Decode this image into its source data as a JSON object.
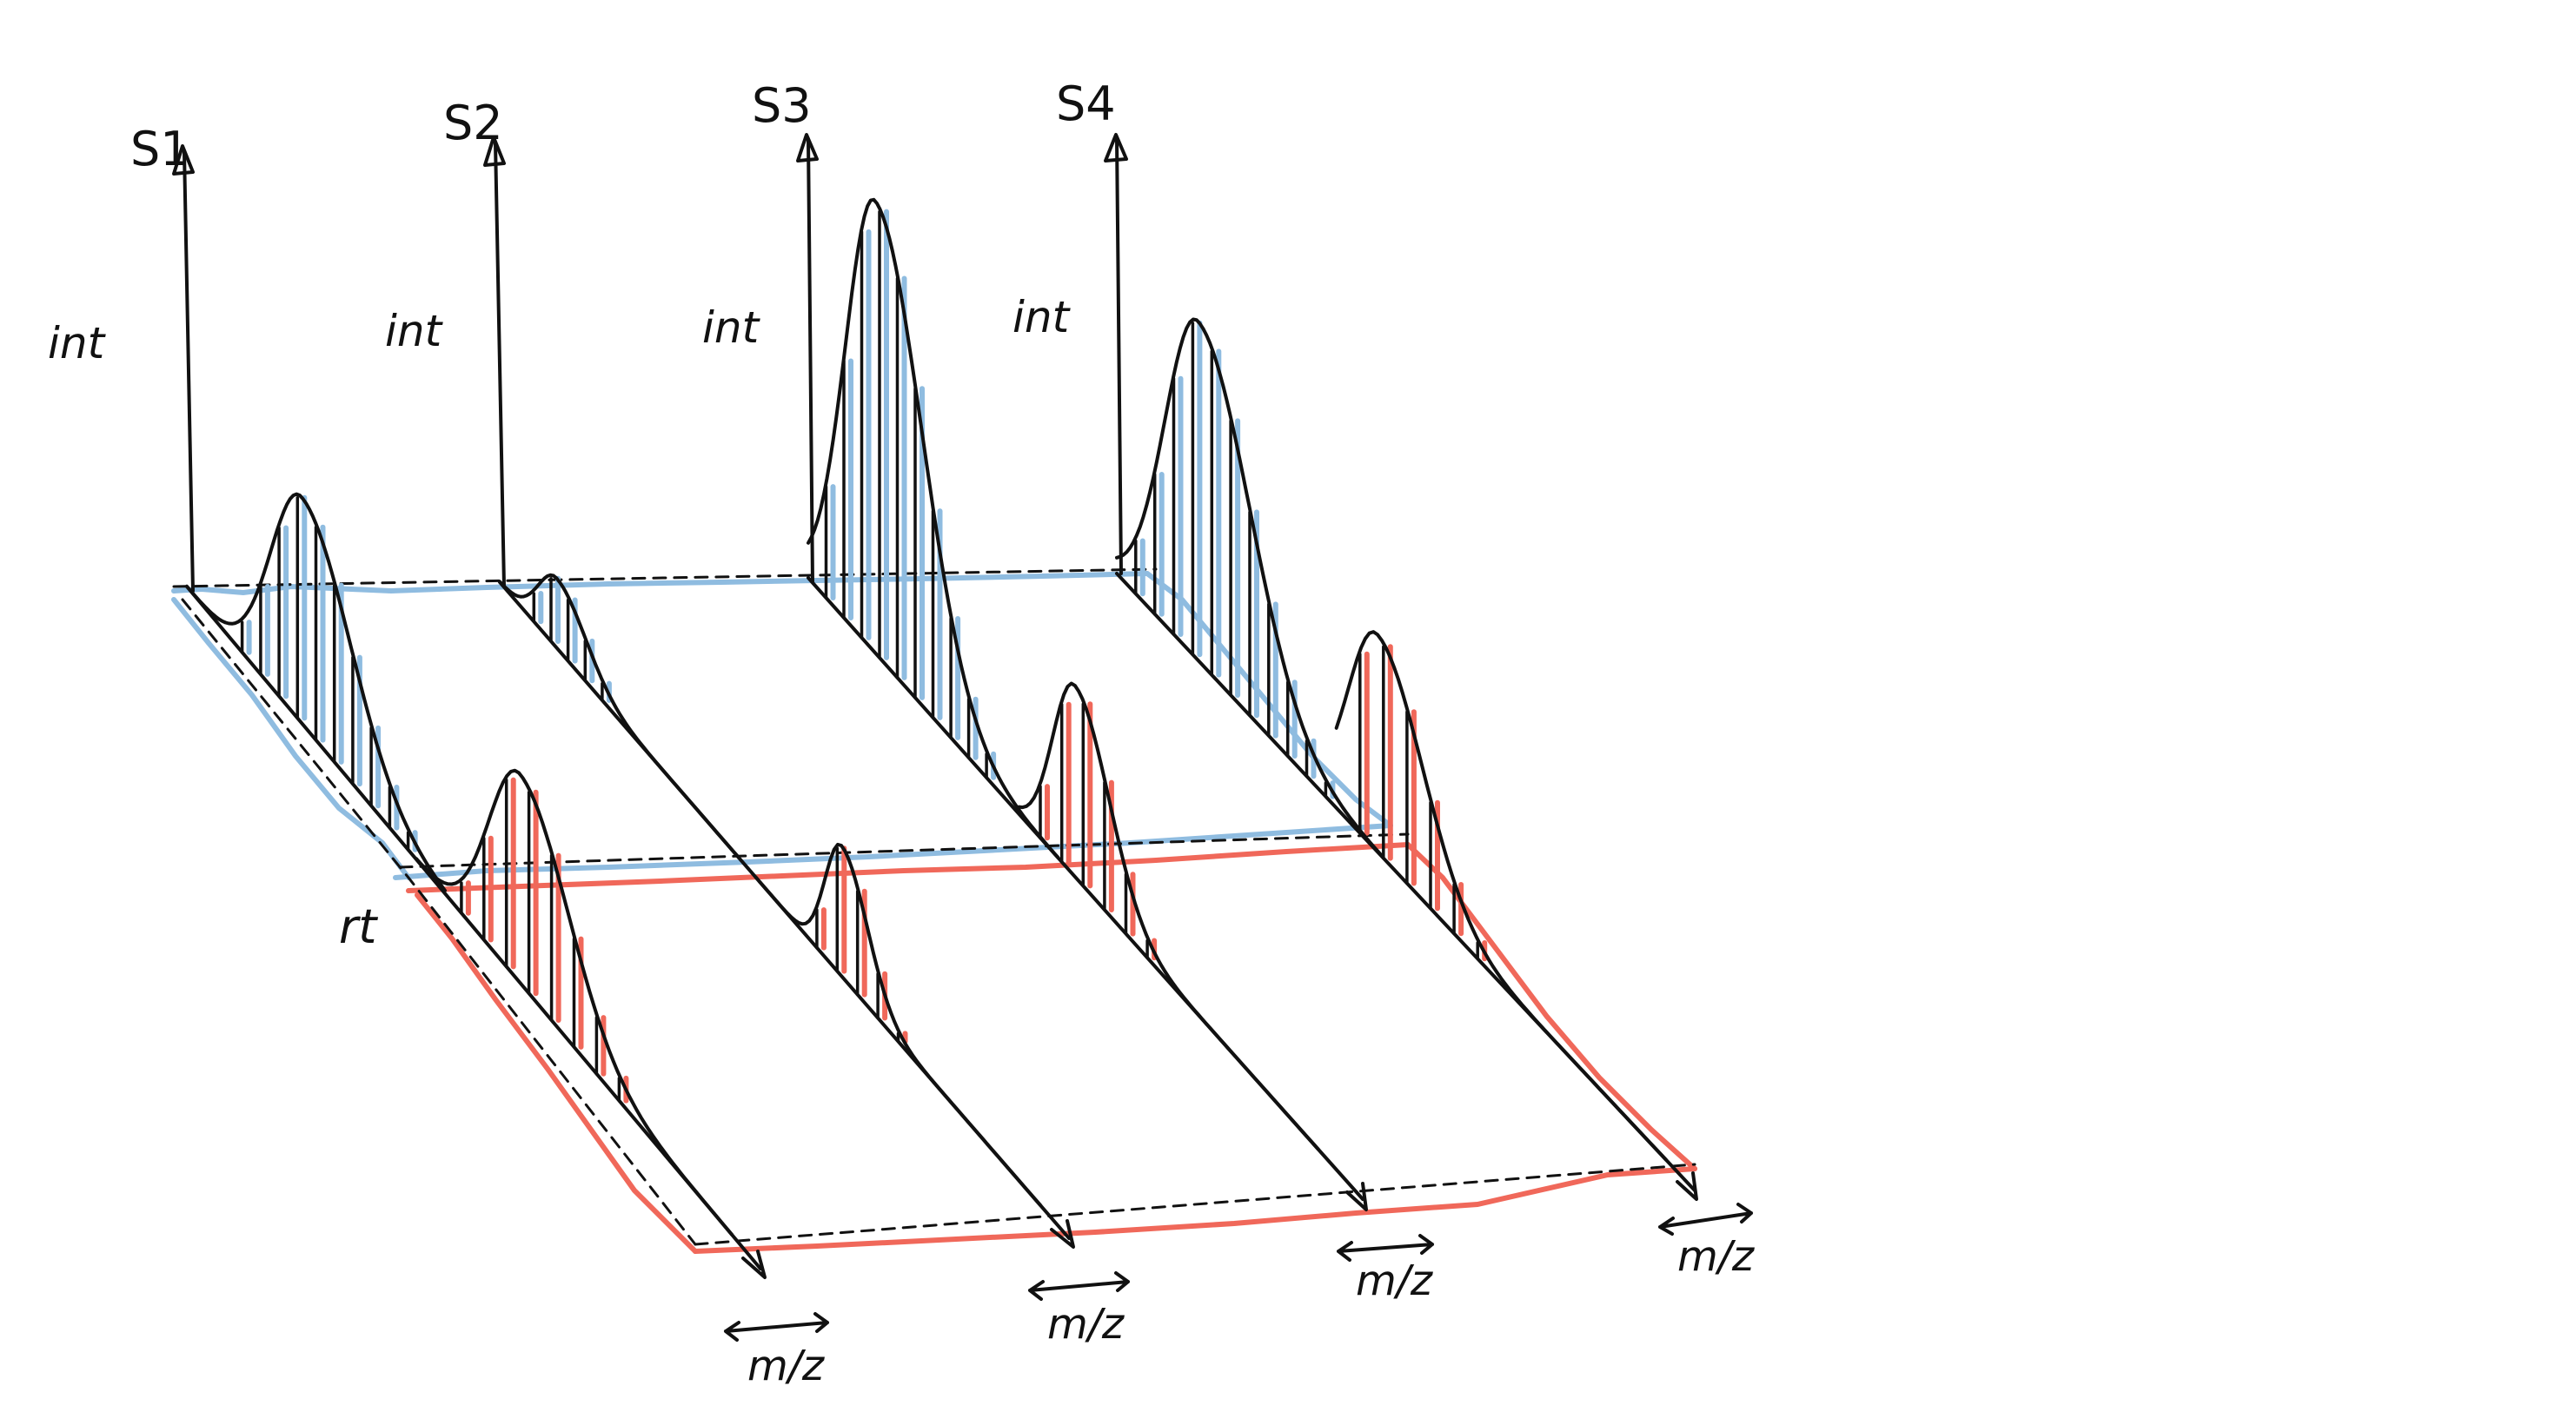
{
  "samples": [
    {
      "label": "S1",
      "axis_label": "int"
    },
    {
      "label": "S2",
      "axis_label": "int"
    },
    {
      "label": "S3",
      "axis_label": "int"
    },
    {
      "label": "S4",
      "axis_label": "int"
    }
  ],
  "rt_label": "rt",
  "mz_labels": [
    "m/z",
    "m/z",
    "m/z",
    "m/z"
  ],
  "colors": {
    "ink": "#111111",
    "blue_region": "#8fbce0",
    "red_region": "#f0685a"
  }
}
